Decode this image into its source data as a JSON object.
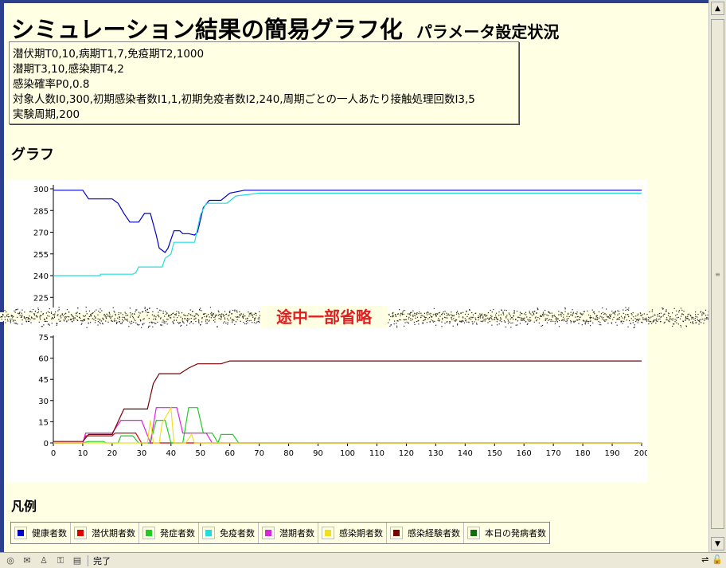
{
  "header": {
    "title": "シミュレーション結果の簡易グラフ化",
    "subtitle": "パラメータ設定状況"
  },
  "parameters": [
    "潜伏期T0,10,病期T1,7,免疫期T2,1000",
    "潜期T3,10,感染期T4,2",
    "感染確率P0,0.8",
    "対象人数I0,300,初期感染者数I1,1,初期免疫者数I2,240,周期ごとの一人あたり接触処理回数I3,5",
    "実験周期,200"
  ],
  "graph_heading": "グラフ",
  "omission_label": "途中一部省略",
  "legend_heading": "凡例",
  "legend": [
    {
      "label": "健康者数",
      "color": "#0000cc"
    },
    {
      "label": "潜伏期者数",
      "color": "#dd0000"
    },
    {
      "label": "発症者数",
      "color": "#22cc22"
    },
    {
      "label": "免疫者数",
      "color": "#22dddd"
    },
    {
      "label": "潜期者数",
      "color": "#dd22dd"
    },
    {
      "label": "感染期者数",
      "color": "#f0e020"
    },
    {
      "label": "感染経験者数",
      "color": "#7a0000"
    },
    {
      "label": "本日の発病者数",
      "color": "#107010"
    }
  ],
  "status": {
    "text": "完了"
  },
  "chart_data": {
    "type": "line",
    "x_ticks": [
      0,
      10,
      20,
      30,
      40,
      50,
      60,
      70,
      80,
      90,
      100,
      110,
      120,
      130,
      140,
      150,
      160,
      170,
      180,
      190,
      200
    ],
    "y_ticks_upper": [
      300,
      285,
      270,
      255,
      240,
      225
    ],
    "y_ticks_lower": [
      75,
      60,
      45,
      30,
      15,
      0
    ],
    "xlim": [
      0,
      200
    ],
    "series": [
      {
        "name": "健康者数",
        "color": "#0000cc",
        "panel": "upper",
        "points": [
          [
            0,
            299
          ],
          [
            10,
            299
          ],
          [
            12,
            293
          ],
          [
            20,
            293
          ],
          [
            22,
            290
          ],
          [
            24,
            283
          ],
          [
            26,
            277
          ],
          [
            29,
            277
          ],
          [
            31,
            283
          ],
          [
            33,
            283
          ],
          [
            35,
            268
          ],
          [
            36,
            259
          ],
          [
            38,
            256
          ],
          [
            39,
            259
          ],
          [
            41,
            271
          ],
          [
            43,
            271
          ],
          [
            44,
            269
          ],
          [
            46,
            269
          ],
          [
            48,
            268
          ],
          [
            49,
            270
          ],
          [
            51,
            287
          ],
          [
            53,
            292
          ],
          [
            57,
            292
          ],
          [
            60,
            297
          ],
          [
            65,
            299
          ],
          [
            200,
            299
          ]
        ]
      },
      {
        "name": "免疫者数",
        "color": "#22dddd",
        "panel": "upper",
        "points": [
          [
            0,
            240
          ],
          [
            16,
            240
          ],
          [
            16,
            241
          ],
          [
            27,
            241
          ],
          [
            28,
            242
          ],
          [
            29,
            246
          ],
          [
            37,
            246
          ],
          [
            38,
            252
          ],
          [
            40,
            255
          ],
          [
            41,
            263
          ],
          [
            48,
            263
          ],
          [
            50,
            282
          ],
          [
            52,
            290
          ],
          [
            59,
            290
          ],
          [
            62,
            295
          ],
          [
            70,
            297
          ],
          [
            200,
            297
          ]
        ]
      },
      {
        "name": "潜伏期者数",
        "color": "#dd0000",
        "panel": "lower",
        "points": [
          [
            0,
            0
          ],
          [
            10,
            0
          ],
          [
            11,
            5
          ],
          [
            20,
            5
          ],
          [
            21,
            7
          ],
          [
            28,
            7
          ],
          [
            30,
            0
          ],
          [
            200,
            0
          ]
        ]
      },
      {
        "name": "発症者数",
        "color": "#22cc22",
        "panel": "lower",
        "points": [
          [
            0,
            0
          ],
          [
            10,
            0
          ],
          [
            12,
            1
          ],
          [
            17,
            1
          ],
          [
            18,
            0
          ],
          [
            22,
            0
          ],
          [
            23,
            5
          ],
          [
            27,
            5
          ],
          [
            29,
            0
          ],
          [
            33,
            0
          ],
          [
            35,
            16
          ],
          [
            38,
            16
          ],
          [
            40,
            0
          ],
          [
            44,
            0
          ],
          [
            46,
            25
          ],
          [
            49,
            25
          ],
          [
            51,
            7
          ],
          [
            54,
            7
          ],
          [
            56,
            0
          ],
          [
            57,
            6
          ],
          [
            61,
            6
          ],
          [
            63,
            0
          ],
          [
            73,
            0
          ],
          [
            200,
            0
          ]
        ]
      },
      {
        "name": "潜期者数",
        "color": "#dd22dd",
        "panel": "lower",
        "points": [
          [
            0,
            0
          ],
          [
            10,
            0
          ],
          [
            11,
            7
          ],
          [
            20,
            7
          ],
          [
            23,
            16
          ],
          [
            30,
            16
          ],
          [
            33,
            0
          ],
          [
            35,
            25
          ],
          [
            42,
            25
          ],
          [
            44,
            7
          ],
          [
            52,
            7
          ],
          [
            54,
            0
          ],
          [
            200,
            0
          ]
        ]
      },
      {
        "name": "感染期者数",
        "color": "#f0e020",
        "panel": "lower",
        "points": [
          [
            0,
            0
          ],
          [
            32,
            0
          ],
          [
            33,
            16
          ],
          [
            34,
            0
          ],
          [
            36,
            0
          ],
          [
            37,
            14
          ],
          [
            40,
            25
          ],
          [
            41,
            0
          ],
          [
            45,
            0
          ],
          [
            47,
            6
          ],
          [
            48,
            0
          ],
          [
            200,
            0
          ]
        ]
      },
      {
        "name": "感染経験者数",
        "color": "#7a0000",
        "panel": "lower",
        "points": [
          [
            0,
            1
          ],
          [
            10,
            1
          ],
          [
            12,
            6
          ],
          [
            20,
            6
          ],
          [
            24,
            24
          ],
          [
            32,
            24
          ],
          [
            34,
            42
          ],
          [
            36,
            49
          ],
          [
            43,
            49
          ],
          [
            46,
            53
          ],
          [
            49,
            56
          ],
          [
            57,
            56
          ],
          [
            60,
            58
          ],
          [
            200,
            58
          ]
        ]
      }
    ]
  }
}
